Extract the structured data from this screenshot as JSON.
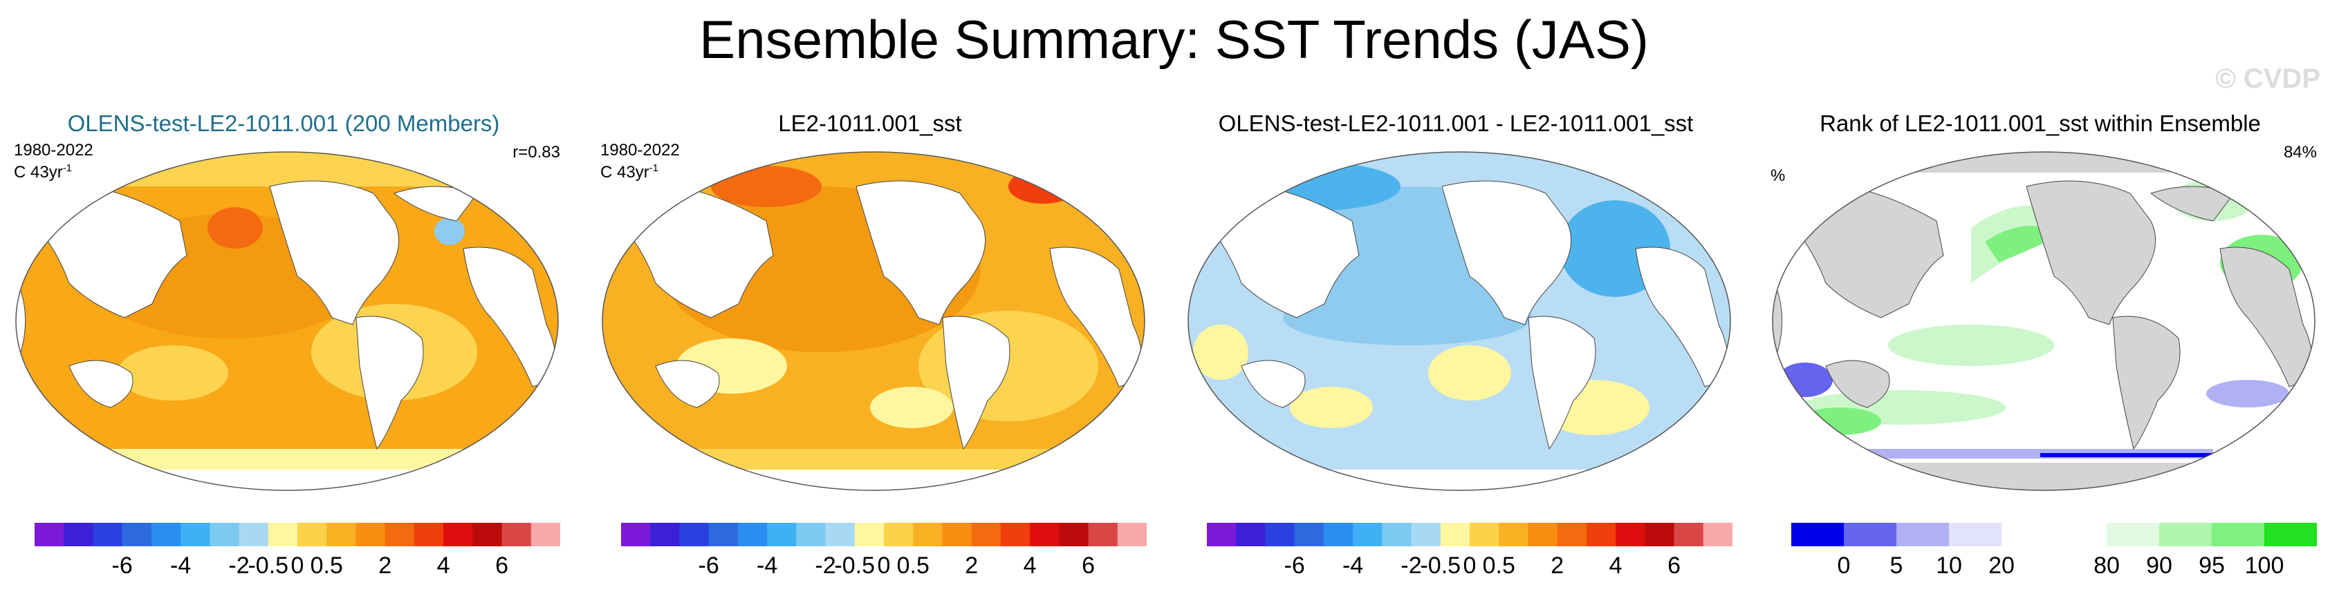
{
  "figure": {
    "title": "Ensemble Summary: SST Trends (JAS)",
    "watermark": "© CVDP"
  },
  "colors": {
    "land": "#ffffff",
    "land_rank": "#d4d4d4",
    "ocean1": "#f9a818",
    "ocean2": "#f49a10",
    "ocean_light": "#fcd450",
    "blue1": "#b9ddf4",
    "blue2": "#8ecbee",
    "blue3": "#4db3ec",
    "green1": "#cbf7cb",
    "green2": "#7ef07e",
    "green3": "#22e022"
  },
  "panels": [
    {
      "title": "OLENS-test-LE2-1011.001 (200 Members)",
      "period": "1980-2022",
      "units": "C 43yr",
      "units_sup": "-1",
      "right_text": "r=0.83"
    },
    {
      "title": "LE2-1011.001_sst",
      "period": "1980-2022",
      "units": "C 43yr",
      "units_sup": "-1",
      "right_text": ""
    },
    {
      "title": "OLENS-test-LE2-1011.001 - LE2-1011.001_sst",
      "period": "",
      "units": "",
      "units_sup": "",
      "right_text": ""
    },
    {
      "title": "Rank of LE2-1011.001_sst within Ensemble",
      "period": "",
      "units": "",
      "units_sup": "",
      "left_text": "%",
      "right_text": "84%"
    }
  ],
  "colorbar_trend": {
    "colors": [
      "#7b1bd8",
      "#3b20d8",
      "#2a40e0",
      "#2d6ae0",
      "#2b8ef0",
      "#3fb0f3",
      "#7dcaf0",
      "#a8d9f3",
      "#fff6a0",
      "#fbd24a",
      "#f9b022",
      "#f98d0e",
      "#f46a10",
      "#f03f0c",
      "#de0d0d",
      "#bb0a0a",
      "#d94646",
      "#f7a8a8"
    ],
    "ticks": [
      "-6",
      "-4",
      "-2",
      "-0.5",
      "0",
      "0.5",
      "2",
      "4",
      "6"
    ]
  },
  "colorbar_rank": {
    "colors": [
      "#0000ee",
      "#6464ee",
      "#b0b0f4",
      "#e2e2fa",
      "#ffffff",
      "#ffffff",
      "#e2fae2",
      "#b0f4b0",
      "#80f080",
      "#22e022"
    ],
    "ticks": [
      "0",
      "5",
      "10",
      "20",
      "80",
      "90",
      "95",
      "100"
    ]
  }
}
